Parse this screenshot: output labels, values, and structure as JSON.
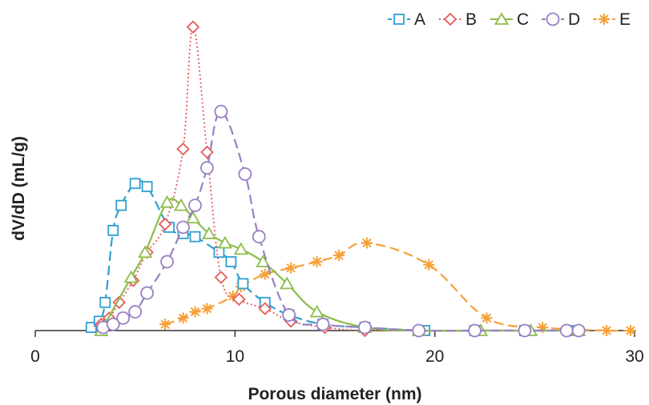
{
  "chart_data": {
    "type": "line",
    "title": "",
    "xlabel": "Porous diameter (nm)",
    "ylabel": "dV/dD (mL/g)",
    "xlim": [
      0,
      30
    ],
    "ylim": [
      0,
      1
    ],
    "x_ticks": [
      "0",
      "10",
      "20",
      "30"
    ],
    "y_ticks_shown": false,
    "grid": false,
    "legend_position": "top-right",
    "series": [
      {
        "name": "A",
        "color": "#2e9fd0",
        "marker": "square",
        "line_style": "dashed",
        "points": [
          [
            2.8,
            0.01
          ],
          [
            3.2,
            0.03
          ],
          [
            3.5,
            0.09
          ],
          [
            3.9,
            0.32
          ],
          [
            4.3,
            0.4
          ],
          [
            5.0,
            0.47
          ],
          [
            5.6,
            0.46
          ],
          [
            6.7,
            0.33
          ],
          [
            7.4,
            0.31
          ],
          [
            8.0,
            0.3
          ],
          [
            9.2,
            0.25
          ],
          [
            9.8,
            0.22
          ],
          [
            10.4,
            0.15
          ],
          [
            11.5,
            0.09
          ],
          [
            12.7,
            0.05
          ],
          [
            14.4,
            0.02
          ],
          [
            16.5,
            0.01
          ],
          [
            19.5,
            0.0
          ],
          [
            22.0,
            0.0
          ],
          [
            24.5,
            0.0
          ],
          [
            27.0,
            0.0
          ]
        ]
      },
      {
        "name": "B",
        "color": "#e85a5a",
        "marker": "diamond",
        "line_style": "dotted",
        "points": [
          [
            3.3,
            0.02
          ],
          [
            3.7,
            0.04
          ],
          [
            4.2,
            0.09
          ],
          [
            4.9,
            0.16
          ],
          [
            5.6,
            0.25
          ],
          [
            6.5,
            0.34
          ],
          [
            7.4,
            0.58
          ],
          [
            7.9,
            0.97
          ],
          [
            8.6,
            0.57
          ],
          [
            9.3,
            0.17
          ],
          [
            10.2,
            0.1
          ],
          [
            11.5,
            0.07
          ],
          [
            12.8,
            0.03
          ],
          [
            14.5,
            0.01
          ],
          [
            16.5,
            0.0
          ],
          [
            19.2,
            0.0
          ],
          [
            22.0,
            0.0
          ],
          [
            24.5,
            0.0
          ]
        ]
      },
      {
        "name": "C",
        "color": "#8cbd4b",
        "marker": "triangle",
        "line_style": "solid",
        "points": [
          [
            3.3,
            0.0
          ],
          [
            4.8,
            0.17
          ],
          [
            5.5,
            0.25
          ],
          [
            6.6,
            0.41
          ],
          [
            7.3,
            0.4
          ],
          [
            7.9,
            0.36
          ],
          [
            8.7,
            0.31
          ],
          [
            9.5,
            0.28
          ],
          [
            10.3,
            0.26
          ],
          [
            11.4,
            0.22
          ],
          [
            12.6,
            0.15
          ],
          [
            14.1,
            0.06
          ],
          [
            16.5,
            0.01
          ],
          [
            19.2,
            0.0
          ],
          [
            22.3,
            0.0
          ],
          [
            24.8,
            0.0
          ],
          [
            27.2,
            0.0
          ]
        ]
      },
      {
        "name": "D",
        "color": "#9a7fc4",
        "marker": "circle",
        "line_style": "dashed",
        "points": [
          [
            3.4,
            0.01
          ],
          [
            3.9,
            0.02
          ],
          [
            4.4,
            0.04
          ],
          [
            5.0,
            0.06
          ],
          [
            5.6,
            0.12
          ],
          [
            6.6,
            0.22
          ],
          [
            7.4,
            0.33
          ],
          [
            8.0,
            0.4
          ],
          [
            8.6,
            0.52
          ],
          [
            9.3,
            0.7
          ],
          [
            10.5,
            0.5
          ],
          [
            11.2,
            0.3
          ],
          [
            12.7,
            0.05
          ],
          [
            14.4,
            0.02
          ],
          [
            16.5,
            0.01
          ],
          [
            19.2,
            0.0
          ],
          [
            22.0,
            0.0
          ],
          [
            24.5,
            0.0
          ],
          [
            26.6,
            0.0
          ],
          [
            27.2,
            0.0
          ]
        ]
      },
      {
        "name": "E",
        "color": "#f5a037",
        "marker": "asterisk",
        "line_style": "dashed",
        "points": [
          [
            6.5,
            0.02
          ],
          [
            7.4,
            0.04
          ],
          [
            8.0,
            0.06
          ],
          [
            8.6,
            0.07
          ],
          [
            9.9,
            0.11
          ],
          [
            10.3,
            0.14
          ],
          [
            11.5,
            0.18
          ],
          [
            12.8,
            0.2
          ],
          [
            14.1,
            0.22
          ],
          [
            15.2,
            0.24
          ],
          [
            16.6,
            0.28
          ],
          [
            19.7,
            0.21
          ],
          [
            22.6,
            0.04
          ],
          [
            25.4,
            0.01
          ],
          [
            28.6,
            0.0
          ],
          [
            29.8,
            0.0
          ]
        ]
      }
    ]
  }
}
